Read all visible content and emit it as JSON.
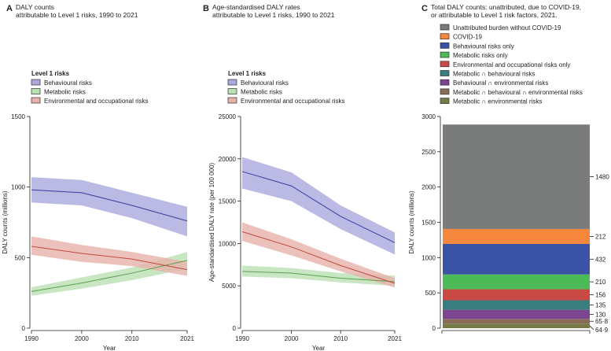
{
  "chart_data": [
    {
      "type": "line",
      "panel": "A",
      "title": [
        "DALY counts",
        "attributable to Level 1 risks, 1990 to 2021"
      ],
      "xlabel": "Year",
      "ylabel": "DALY counts (millions)",
      "x": [
        1990,
        2000,
        2010,
        2021
      ],
      "xticks": [
        "1990",
        "2000",
        "2010",
        "2021"
      ],
      "ylim": [
        0,
        1500
      ],
      "yticks": [
        "0",
        "500",
        "1000",
        "1500"
      ],
      "legend_title": "Level 1 risks",
      "series": [
        {
          "name": "Behavioural risks",
          "values": [
            980,
            960,
            870,
            760
          ],
          "lower": [
            890,
            870,
            780,
            650
          ],
          "upper": [
            1070,
            1050,
            960,
            860
          ],
          "line": "#3b3ba0",
          "fill": "#a9a9dd"
        },
        {
          "name": "Metabolic risks",
          "values": [
            260,
            320,
            390,
            480
          ],
          "lower": [
            230,
            280,
            340,
            420
          ],
          "upper": [
            290,
            360,
            430,
            540
          ],
          "line": "#5aa050",
          "fill": "#b9e0b2"
        },
        {
          "name": "Environmental and occupational risks",
          "values": [
            580,
            530,
            490,
            415
          ],
          "lower": [
            520,
            470,
            440,
            370
          ],
          "upper": [
            650,
            590,
            540,
            470
          ],
          "line": "#c04a40",
          "fill": "#e8b2aa"
        }
      ]
    },
    {
      "type": "line",
      "panel": "B",
      "title": [
        "Age-standardised DALY rates",
        "attributable to Level 1 risks, 1990 to 2021"
      ],
      "xlabel": "Year",
      "ylabel": "Age-standardised DALY rate (per 100 000)",
      "x": [
        1990,
        2000,
        2010,
        2021
      ],
      "xticks": [
        "1990",
        "2000",
        "2010",
        "2021"
      ],
      "ylim": [
        0,
        25000
      ],
      "yticks": [
        "0",
        "5000",
        "10000",
        "15000",
        "20000",
        "25000"
      ],
      "legend_title": "Level 1 risks",
      "series": [
        {
          "name": "Behavioural risks",
          "values": [
            18500,
            16800,
            13200,
            10100
          ],
          "lower": [
            16500,
            15000,
            11700,
            8700
          ],
          "upper": [
            20200,
            18400,
            14500,
            11300
          ],
          "line": "#3b3ba0",
          "fill": "#a9a9dd"
        },
        {
          "name": "Metabolic risks",
          "values": [
            6700,
            6500,
            5900,
            5500
          ],
          "lower": [
            6100,
            5900,
            5400,
            5000
          ],
          "upper": [
            7400,
            7100,
            6500,
            6200
          ],
          "line": "#5aa050",
          "fill": "#b9e0b2"
        },
        {
          "name": "Environmental and occupational risks",
          "values": [
            11400,
            9600,
            7400,
            5300
          ],
          "lower": [
            10300,
            8600,
            6700,
            4800
          ],
          "upper": [
            12500,
            10500,
            8200,
            5900
          ],
          "line": "#c04a40",
          "fill": "#e8b2aa"
        }
      ]
    },
    {
      "type": "bar",
      "stacked": true,
      "panel": "C",
      "title": [
        "Total DALY counts: unattributed, due to COVID-19,",
        "or attributable to Level 1 risk factors, 2021."
      ],
      "ylabel": "DALY counts (millions)",
      "ylim": [
        0,
        3000
      ],
      "yticks": [
        "0",
        "500",
        "1000",
        "1500",
        "2000",
        "2500",
        "3000"
      ],
      "segments_bottom_to_top": [
        {
          "name": "Metabolic ∩ environmental risks",
          "value": 64.9,
          "label": "64·9",
          "color": "#787a45"
        },
        {
          "name": "Metabolic ∩ behavioural ∩ environmental risks",
          "value": 65.8,
          "label": "65·8",
          "color": "#8a6a58"
        },
        {
          "name": "Behavioural ∩ environmental risks",
          "value": 130,
          "label": "130",
          "color": "#7b4590"
        },
        {
          "name": "Metabolic ∩ behavioural risks",
          "value": 135,
          "label": "135",
          "color": "#3a7d7e"
        },
        {
          "name": "Environmental and occupational risks only",
          "value": 156,
          "label": "156",
          "color": "#c94a45"
        },
        {
          "name": "Metabolic risks only",
          "value": 210,
          "label": "210",
          "color": "#4dba58"
        },
        {
          "name": "Behavioural risks only",
          "value": 432,
          "label": "432",
          "color": "#3a53a4"
        },
        {
          "name": "COVID-19",
          "value": 212,
          "label": "212",
          "color": "#f5873d"
        },
        {
          "name": "Unattributed burden without COVID-19",
          "value": 1480,
          "label": "1480",
          "color": "#7a7c7b"
        }
      ]
    }
  ]
}
